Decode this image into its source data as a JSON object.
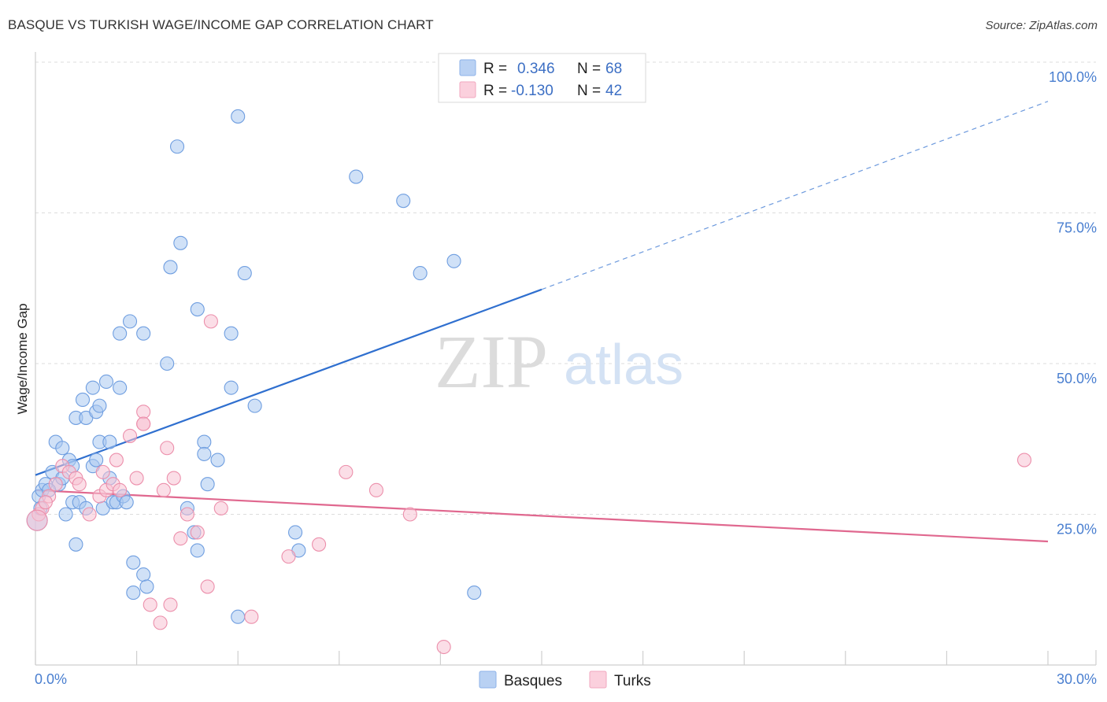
{
  "title": "BASQUE VS TURKISH WAGE/INCOME GAP CORRELATION CHART",
  "source": "Source: ZipAtlas.com",
  "watermark": {
    "zip": "ZIP",
    "atlas": "atlas"
  },
  "legend": {
    "r_label": "R =",
    "n_label": "N =",
    "rows": [
      {
        "series": "Basques",
        "r": "0.346",
        "n": "68",
        "color": "#9dbfee"
      },
      {
        "series": "Turks",
        "r": "-0.130",
        "n": "42",
        "color": "#f7b9cc"
      }
    ]
  },
  "colors": {
    "basques_fill": "#a9c8f0",
    "basques_stroke": "#6f9ee0",
    "basques_line": "#2f6fcf",
    "turks_fill": "#f8c3d3",
    "turks_stroke": "#ec8fab",
    "turks_line": "#e0688f",
    "tick_text": "#4a7fd0",
    "grid": "#dddddd"
  },
  "chart_data": {
    "type": "scatter",
    "title": "BASQUE VS TURKISH WAGE/INCOME GAP CORRELATION CHART",
    "xlabel": "",
    "ylabel": "Wage/Income Gap",
    "xlim": [
      0,
      30
    ],
    "ylim": [
      0,
      100
    ],
    "x_tick_labels": [
      "0.0%",
      "30.0%"
    ],
    "y_ticks": [
      25,
      50,
      75,
      100
    ],
    "y_tick_labels": [
      "25.0%",
      "50.0%",
      "75.0%",
      "100.0%"
    ],
    "grid": true,
    "legend_position": "top-center",
    "series": [
      {
        "name": "Basques",
        "points": [
          [
            0.1,
            28
          ],
          [
            0.2,
            29
          ],
          [
            0.3,
            30
          ],
          [
            0.5,
            32
          ],
          [
            0.6,
            37
          ],
          [
            0.7,
            30
          ],
          [
            0.8,
            31
          ],
          [
            0.8,
            36
          ],
          [
            0.9,
            25
          ],
          [
            1.0,
            34
          ],
          [
            1.1,
            33
          ],
          [
            1.1,
            27
          ],
          [
            1.2,
            20
          ],
          [
            1.2,
            41
          ],
          [
            1.3,
            27
          ],
          [
            1.4,
            44
          ],
          [
            1.5,
            41
          ],
          [
            1.5,
            26
          ],
          [
            1.7,
            33
          ],
          [
            1.7,
            46
          ],
          [
            1.8,
            42
          ],
          [
            1.8,
            34
          ],
          [
            1.9,
            43
          ],
          [
            1.9,
            37
          ],
          [
            2.0,
            26
          ],
          [
            2.1,
            47
          ],
          [
            2.2,
            31
          ],
          [
            2.2,
            37
          ],
          [
            2.3,
            27
          ],
          [
            2.4,
            27
          ],
          [
            2.5,
            55
          ],
          [
            2.5,
            46
          ],
          [
            2.6,
            28
          ],
          [
            2.7,
            27
          ],
          [
            2.8,
            57
          ],
          [
            2.9,
            17
          ],
          [
            2.9,
            12
          ],
          [
            3.2,
            55
          ],
          [
            3.2,
            15
          ],
          [
            3.3,
            13
          ],
          [
            3.9,
            50
          ],
          [
            4.0,
            66
          ],
          [
            4.2,
            86
          ],
          [
            4.3,
            70
          ],
          [
            4.5,
            26
          ],
          [
            4.7,
            22
          ],
          [
            4.8,
            59
          ],
          [
            4.8,
            19
          ],
          [
            5.0,
            37
          ],
          [
            5.0,
            35
          ],
          [
            5.1,
            30
          ],
          [
            5.4,
            34
          ],
          [
            5.8,
            46
          ],
          [
            5.8,
            55
          ],
          [
            6.0,
            91
          ],
          [
            6.2,
            65
          ],
          [
            6.5,
            43
          ],
          [
            6.0,
            8
          ],
          [
            7.7,
            22
          ],
          [
            7.8,
            19
          ],
          [
            9.5,
            81
          ],
          [
            10.9,
            77
          ],
          [
            11.4,
            65
          ],
          [
            12.4,
            67
          ],
          [
            13.0,
            12
          ],
          [
            0.05,
            24
          ],
          [
            0.15,
            26
          ],
          [
            0.4,
            29
          ]
        ]
      },
      {
        "name": "Turks",
        "points": [
          [
            0.1,
            25
          ],
          [
            0.2,
            26
          ],
          [
            0.4,
            28
          ],
          [
            0.6,
            30
          ],
          [
            0.8,
            33
          ],
          [
            1.0,
            32
          ],
          [
            1.2,
            31
          ],
          [
            1.3,
            30
          ],
          [
            1.6,
            25
          ],
          [
            1.9,
            28
          ],
          [
            2.0,
            32
          ],
          [
            2.1,
            29
          ],
          [
            2.3,
            30
          ],
          [
            2.4,
            34
          ],
          [
            2.5,
            29
          ],
          [
            2.8,
            38
          ],
          [
            3.0,
            31
          ],
          [
            3.2,
            40
          ],
          [
            3.2,
            42
          ],
          [
            3.2,
            40
          ],
          [
            3.4,
            10
          ],
          [
            3.7,
            7
          ],
          [
            3.8,
            29
          ],
          [
            3.9,
            36
          ],
          [
            4.0,
            10
          ],
          [
            4.1,
            31
          ],
          [
            4.3,
            21
          ],
          [
            4.5,
            25
          ],
          [
            4.8,
            22
          ],
          [
            5.1,
            13
          ],
          [
            5.2,
            57
          ],
          [
            5.5,
            26
          ],
          [
            6.4,
            8
          ],
          [
            7.5,
            18
          ],
          [
            8.4,
            20
          ],
          [
            9.2,
            32
          ],
          [
            10.1,
            29
          ],
          [
            11.1,
            25
          ],
          [
            12.1,
            3
          ],
          [
            29.3,
            34
          ],
          [
            0.05,
            24
          ],
          [
            0.3,
            27
          ]
        ]
      }
    ],
    "trend_lines": [
      {
        "series": "Basques",
        "x": [
          0,
          15
        ],
        "y": [
          31.5,
          62.3
        ],
        "dashed_extension_to": [
          30,
          93.5
        ]
      },
      {
        "series": "Turks",
        "x": [
          0,
          30
        ],
        "y": [
          29,
          20.5
        ]
      }
    ]
  }
}
